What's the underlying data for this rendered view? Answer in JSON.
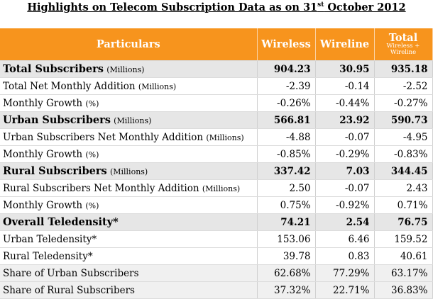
{
  "title": {
    "text_before": "Highlights on Telecom Subscription Data as on 31",
    "superscript": "st",
    "text_after": " October 2012"
  },
  "header": {
    "particulars": "Particulars",
    "wireless": "Wireless",
    "wireline": "Wireline",
    "total": "Total",
    "total_sub": "Wireless + Wireline",
    "header_color": "#f7941d"
  },
  "rows": [
    {
      "label": "Total Subscribers",
      "unit": "(Millions)",
      "wireless": "904.23",
      "wireline": "30.95",
      "total": "935.18"
    },
    {
      "label": "Total Net Monthly Addition",
      "unit": "(Millions)",
      "wireless": "-2.39",
      "wireline": "-0.14",
      "total": "-2.52"
    },
    {
      "label": "Monthly Growth",
      "unit": "(%)",
      "wireless": "-0.26%",
      "wireline": "-0.44%",
      "total": "-0.27%"
    },
    {
      "label": "Urban Subscribers",
      "unit": "(Millions)",
      "wireless": "566.81",
      "wireline": "23.92",
      "total": "590.73"
    },
    {
      "label": "Urban Subscribers Net Monthly Addition",
      "unit": "(Millions)",
      "wireless": "-4.88",
      "wireline": "-0.07",
      "total": "-4.95"
    },
    {
      "label": "Monthly Growth",
      "unit": "(%)",
      "wireless": "-0.85%",
      "wireline": "-0.29%",
      "total": "-0.83%"
    },
    {
      "label": "Rural Subscribers",
      "unit": "(Millions)",
      "wireless": "337.42",
      "wireline": "7.03",
      "total": "344.45"
    },
    {
      "label": "Rural Subscribers Net Monthly Addition",
      "unit": "(Millions)",
      "wireless": "2.50",
      "wireline": "-0.07",
      "total": "2.43"
    },
    {
      "label": "Monthly Growth",
      "unit": "(%)",
      "wireless": "0.75%",
      "wireline": "-0.92%",
      "total": "0.71%"
    },
    {
      "label": "Overall Teledensity*",
      "unit": "",
      "wireless": "74.21",
      "wireline": "2.54",
      "total": "76.75"
    },
    {
      "label": "Urban Teledensity*",
      "unit": "",
      "wireless": "153.06",
      "wireline": "6.46",
      "total": "159.52"
    },
    {
      "label": "Rural Teledensity*",
      "unit": "",
      "wireless": "39.78",
      "wireline": "0.83",
      "total": "40.61"
    },
    {
      "label": "Share of Urban Subscribers",
      "unit": "",
      "wireless": "62.68%",
      "wireline": "77.29%",
      "total": "63.17%"
    },
    {
      "label": "Share of Rural Subscribers",
      "unit": "",
      "wireless": "37.32%",
      "wireline": "22.71%",
      "total": "36.83%"
    }
  ]
}
